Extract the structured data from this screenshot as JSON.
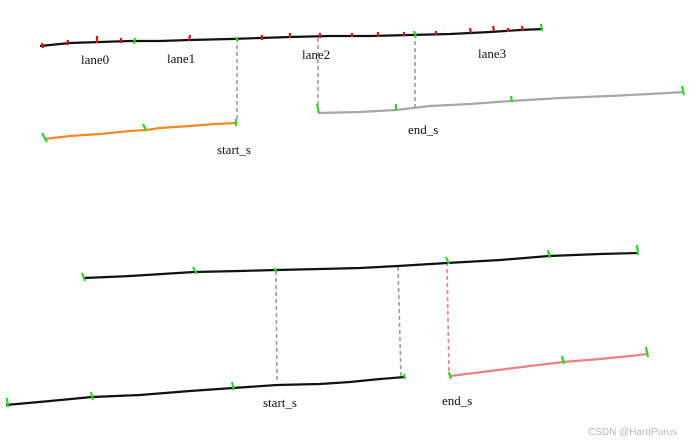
{
  "colors": {
    "main_line": "#111111",
    "orange_line": "#f08a24",
    "gray_line": "#a8a8a8",
    "pink_line": "#f08080",
    "connector": "#9a9a9a",
    "green_tick": "#22dd22",
    "red_tick": "#e01010"
  },
  "top_diagram": {
    "lane_labels": [
      "lane0",
      "lane1",
      "lane2",
      "lane3"
    ],
    "start_label": "start_s",
    "end_label": "end_s"
  },
  "bottom_diagram": {
    "start_label": "start_s",
    "end_label": "end_s"
  },
  "watermark": "CSDN @HardPurus"
}
